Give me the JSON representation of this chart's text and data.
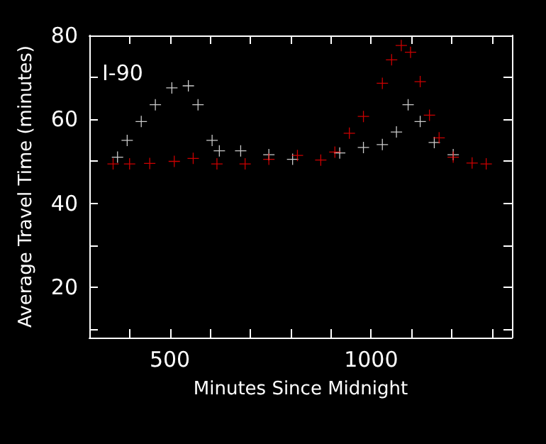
{
  "chart_data": {
    "type": "scatter",
    "xlabel": "Minutes Since Midnight",
    "ylabel": "Average Travel Time (minutes)",
    "annotations": [
      "I-90"
    ],
    "marker": "cross",
    "grid": false,
    "xlim": [
      300,
      1350
    ],
    "ylim": [
      8,
      80
    ],
    "xticks": [
      {
        "value": 400,
        "label": null
      },
      500,
      {
        "value": 600,
        "label": null
      },
      {
        "value": 700,
        "label": null
      },
      {
        "value": 800,
        "label": null
      },
      {
        "value": 900,
        "label": null
      },
      1000,
      {
        "value": 1100,
        "label": null
      },
      {
        "value": 1200,
        "label": null
      },
      {
        "value": 1300,
        "label": null
      }
    ],
    "yticks": [
      {
        "value": 10,
        "label": null
      },
      20,
      {
        "value": 30,
        "label": null
      },
      40,
      {
        "value": 50,
        "label": null
      },
      60,
      {
        "value": 70,
        "label": null
      },
      80
    ],
    "series": [
      {
        "color": "#ffffff",
        "x": [
          370,
          394,
          429,
          464,
          505,
          546,
          570,
          605,
          623,
          676,
          746,
          805,
          875,
          922,
          981,
          1028,
          1063,
          1092,
          1122,
          1157,
          1204
        ],
        "values": [
          51,
          55,
          59.5,
          63.5,
          67.5,
          68,
          63.5,
          55,
          52.5,
          52.5,
          51.6,
          50.5,
          null,
          52,
          53.3,
          54,
          57,
          63.5,
          59.5,
          54.5,
          51.6
        ]
      },
      {
        "color": "#ff0000",
        "x": [
          359,
          400,
          450,
          511,
          558,
          617,
          687,
          746,
          817,
          875,
          910,
          946,
          981,
          1028,
          1051,
          1075,
          1098,
          1122,
          1145,
          1169,
          1204,
          1251,
          1286
        ],
        "values": [
          49.4,
          49.4,
          49.5,
          50,
          50.7,
          49.4,
          49.4,
          50.5,
          51.4,
          50.3,
          52.2,
          56.7,
          60.7,
          68.6,
          74.2,
          77.6,
          76,
          69,
          61,
          55.6,
          51,
          49.6,
          49.4
        ]
      }
    ]
  }
}
